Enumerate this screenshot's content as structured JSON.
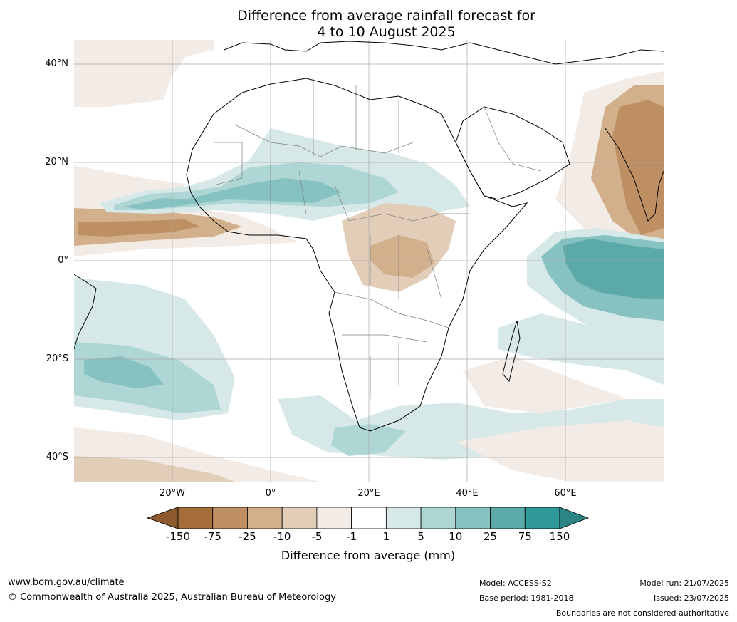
{
  "title": {
    "line1": "Difference from average rainfall forecast for",
    "line2": "4 to 10 August 2025"
  },
  "axes": {
    "lat_labels": [
      "40°N",
      "20°N",
      "0°",
      "20°S",
      "40°S"
    ],
    "lon_labels": [
      "20°W",
      "0°",
      "20°E",
      "40°E",
      "60°E"
    ]
  },
  "colorbar": {
    "ticks": [
      "-150",
      "-75",
      "-25",
      "-10",
      "-5",
      "-1",
      "1",
      "5",
      "10",
      "25",
      "75",
      "150"
    ],
    "colors": [
      "#a46d3a",
      "#be8f62",
      "#d3b08c",
      "#e2cdb9",
      "#f3ebe5",
      "#ffffff",
      "#d6e9e8",
      "#aed6d4",
      "#86c2c1",
      "#5ba9a9",
      "#30999a"
    ],
    "under_color": "#8d5a2d",
    "over_color": "#2c8585",
    "label": "Difference from average (mm)"
  },
  "footer": {
    "website": "www.bom.gov.au/climate",
    "copyright": "© Commonwealth of Australia 2025, Australian Bureau of Meteorology",
    "model": "Model: ACCESS-S2",
    "base_period": "Base period: 1981-2018",
    "model_run": "Model run: 21/07/2025",
    "issued": "Issued: 23/07/2025",
    "disclaimer": "Boundaries are not considered authoritative"
  }
}
